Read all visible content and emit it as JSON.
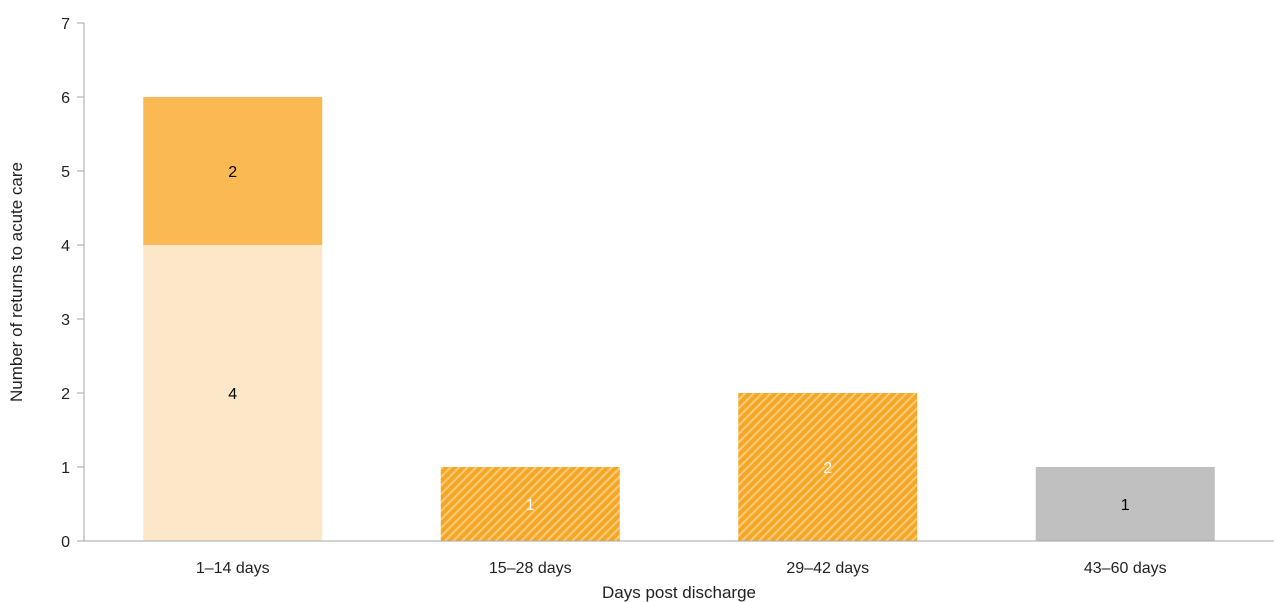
{
  "chart_data": {
    "type": "bar",
    "stacked": true,
    "categories": [
      "1–14 days",
      "15–28 days",
      "29–42 days",
      "43–60 days"
    ],
    "xlabel": "Days post discharge",
    "ylabel": "Number of returns to acute care",
    "ylim": [
      0,
      7
    ],
    "yticks": [
      0,
      1,
      2,
      3,
      4,
      5,
      6,
      7
    ],
    "grid": false,
    "segments": [
      {
        "category_index": 0,
        "base": 0,
        "value": 4,
        "label": "4",
        "fill": "#fde7c9",
        "hatched": false,
        "label_color": "#000000"
      },
      {
        "category_index": 0,
        "base": 4,
        "value": 2,
        "label": "2",
        "fill": "#fbb954",
        "hatched": false,
        "label_color": "#000000"
      },
      {
        "category_index": 1,
        "base": 0,
        "value": 1,
        "label": "1",
        "fill": "#f5a623",
        "hatched": true,
        "label_color": "#ffffff"
      },
      {
        "category_index": 2,
        "base": 0,
        "value": 2,
        "label": "2",
        "fill": "#f5a623",
        "hatched": true,
        "label_color": "#ffffff"
      },
      {
        "category_index": 3,
        "base": 0,
        "value": 1,
        "label": "1",
        "fill": "#c0c0c0",
        "hatched": false,
        "label_color": "#000000"
      }
    ]
  }
}
